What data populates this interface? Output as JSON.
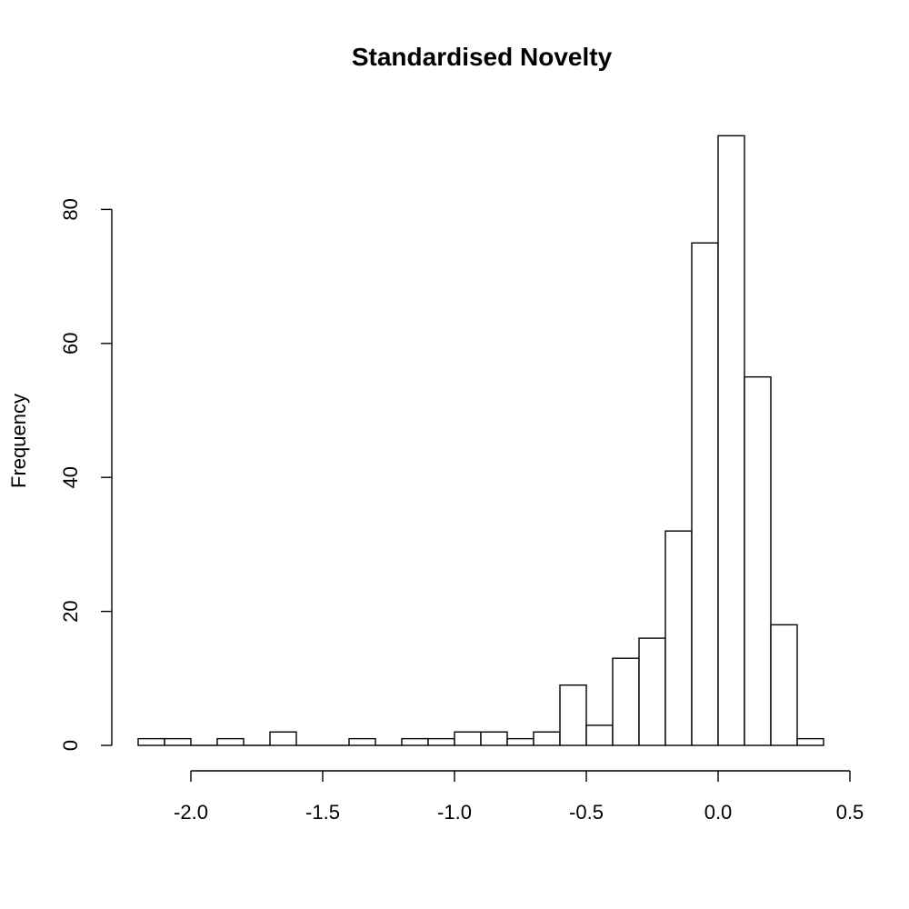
{
  "chart_data": {
    "type": "bar",
    "title": "Standardised Novelty",
    "xlabel": "",
    "ylabel": "Frequency",
    "bin_width": 0.1,
    "bins": [
      {
        "from": -2.2,
        "to": -2.1,
        "count": 1
      },
      {
        "from": -2.1,
        "to": -2.0,
        "count": 1
      },
      {
        "from": -2.0,
        "to": -1.9,
        "count": 0
      },
      {
        "from": -1.9,
        "to": -1.8,
        "count": 1
      },
      {
        "from": -1.8,
        "to": -1.7,
        "count": 0
      },
      {
        "from": -1.7,
        "to": -1.6,
        "count": 2
      },
      {
        "from": -1.6,
        "to": -1.5,
        "count": 0
      },
      {
        "from": -1.5,
        "to": -1.4,
        "count": 0
      },
      {
        "from": -1.4,
        "to": -1.3,
        "count": 1
      },
      {
        "from": -1.3,
        "to": -1.2,
        "count": 0
      },
      {
        "from": -1.2,
        "to": -1.1,
        "count": 1
      },
      {
        "from": -1.1,
        "to": -1.0,
        "count": 1
      },
      {
        "from": -1.0,
        "to": -0.9,
        "count": 2
      },
      {
        "from": -0.9,
        "to": -0.8,
        "count": 2
      },
      {
        "from": -0.8,
        "to": -0.7,
        "count": 1
      },
      {
        "from": -0.7,
        "to": -0.6,
        "count": 2
      },
      {
        "from": -0.6,
        "to": -0.5,
        "count": 9
      },
      {
        "from": -0.5,
        "to": -0.4,
        "count": 3
      },
      {
        "from": -0.4,
        "to": -0.3,
        "count": 13
      },
      {
        "from": -0.3,
        "to": -0.2,
        "count": 16
      },
      {
        "from": -0.2,
        "to": -0.1,
        "count": 32
      },
      {
        "from": -0.1,
        "to": 0.0,
        "count": 75
      },
      {
        "from": 0.0,
        "to": 0.1,
        "count": 91
      },
      {
        "from": 0.1,
        "to": 0.2,
        "count": 55
      },
      {
        "from": 0.2,
        "to": 0.3,
        "count": 18
      },
      {
        "from": 0.3,
        "to": 0.4,
        "count": 1
      }
    ],
    "x_ticks": [
      {
        "value": -2.0,
        "label": "-2.0"
      },
      {
        "value": -1.5,
        "label": "-1.5"
      },
      {
        "value": -1.0,
        "label": "-1.0"
      },
      {
        "value": -0.5,
        "label": "-0.5"
      },
      {
        "value": 0.0,
        "label": "0.0"
      },
      {
        "value": 0.5,
        "label": "0.5"
      }
    ],
    "y_ticks": [
      {
        "value": 0,
        "label": "0"
      },
      {
        "value": 20,
        "label": "20"
      },
      {
        "value": 40,
        "label": "40"
      },
      {
        "value": 60,
        "label": "60"
      },
      {
        "value": 80,
        "label": "80"
      }
    ],
    "xlim": [
      -2.2,
      0.4
    ],
    "ylim": [
      0,
      91
    ],
    "grid": false,
    "legend": "none",
    "colors": {
      "bar_fill": "#ffffff",
      "bar_stroke": "#000000"
    }
  }
}
